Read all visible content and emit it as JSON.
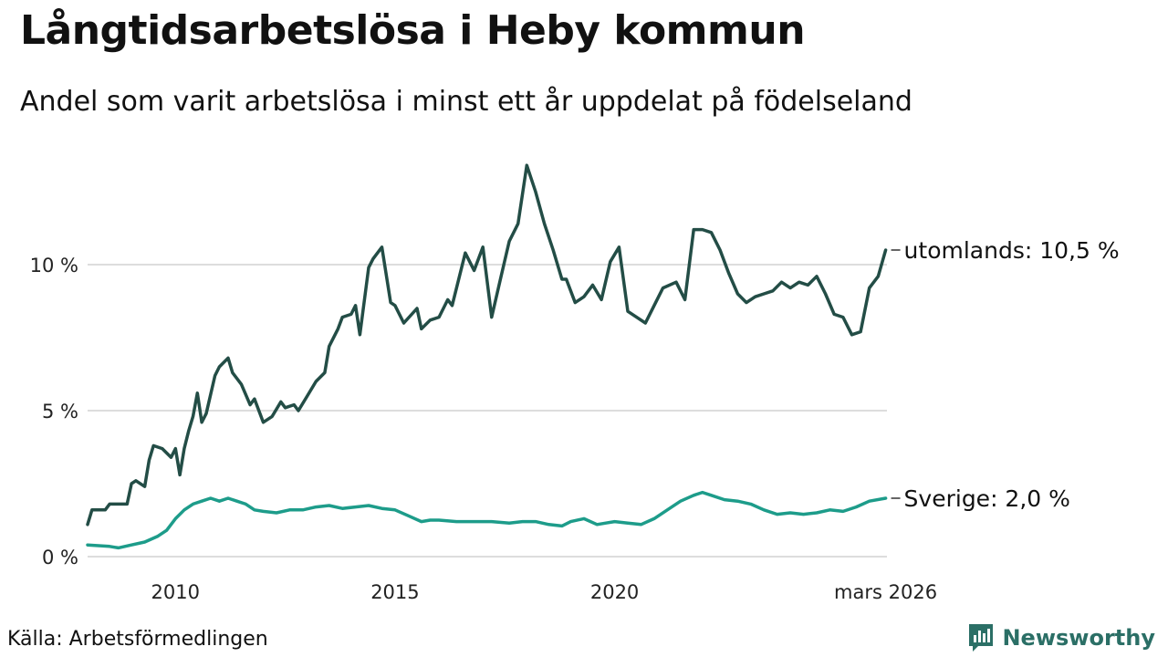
{
  "chart_data": {
    "type": "line",
    "title": "Långtidsarbetslösa i Heby kommun",
    "subtitle": "Andel som varit arbetslösa i minst ett år uppdelat på födelseland",
    "ylim": [
      0,
      14
    ],
    "xlim": [
      2008.0,
      2026.2
    ],
    "yticks": [
      {
        "value": 0,
        "label": "0 %"
      },
      {
        "value": 5,
        "label": "5 %"
      },
      {
        "value": 10,
        "label": "10 %"
      }
    ],
    "xticks": [
      {
        "value": 2010,
        "label": "2010"
      },
      {
        "value": 2015,
        "label": "2015"
      },
      {
        "value": 2020,
        "label": "2020"
      },
      {
        "value": 2026.17,
        "label": "mars 2026"
      }
    ],
    "series": [
      {
        "name": "utomlands",
        "end_label": "utomlands: 10,5 %",
        "color": "#234d46",
        "x": [
          2008.0,
          2008.1,
          2008.4,
          2008.5,
          2008.9,
          2009.0,
          2009.1,
          2009.3,
          2009.4,
          2009.5,
          2009.7,
          2009.9,
          2010.0,
          2010.1,
          2010.2,
          2010.3,
          2010.4,
          2010.5,
          2010.6,
          2010.7,
          2010.9,
          2011.0,
          2011.2,
          2011.3,
          2011.5,
          2011.7,
          2011.8,
          2012.0,
          2012.2,
          2012.4,
          2012.5,
          2012.7,
          2012.8,
          2013.0,
          2013.2,
          2013.4,
          2013.5,
          2013.7,
          2013.8,
          2014.0,
          2014.1,
          2014.2,
          2014.4,
          2014.5,
          2014.7,
          2014.9,
          2015.0,
          2015.2,
          2015.5,
          2015.6,
          2015.8,
          2016.0,
          2016.2,
          2016.3,
          2016.6,
          2016.8,
          2017.0,
          2017.2,
          2017.4,
          2017.6,
          2017.8,
          2018.0,
          2018.2,
          2018.4,
          2018.6,
          2018.8,
          2018.9,
          2019.1,
          2019.3,
          2019.5,
          2019.7,
          2019.9,
          2020.1,
          2020.3,
          2020.5,
          2020.7,
          2020.9,
          2021.1,
          2021.4,
          2021.6,
          2021.8,
          2022.0,
          2022.2,
          2022.4,
          2022.6,
          2022.8,
          2023.0,
          2023.2,
          2023.4,
          2023.6,
          2023.8,
          2024.0,
          2024.2,
          2024.4,
          2024.6,
          2024.8,
          2025.0,
          2025.2,
          2025.4,
          2025.6,
          2025.8,
          2026.0,
          2026.17
        ],
        "values": [
          1.1,
          1.6,
          1.6,
          1.8,
          1.8,
          2.5,
          2.6,
          2.4,
          3.3,
          3.8,
          3.7,
          3.4,
          3.7,
          2.8,
          3.7,
          4.3,
          4.8,
          5.6,
          4.6,
          4.9,
          6.2,
          6.5,
          6.8,
          6.3,
          5.9,
          5.2,
          5.4,
          4.6,
          4.8,
          5.3,
          5.1,
          5.2,
          5.0,
          5.5,
          6.0,
          6.3,
          7.2,
          7.8,
          8.2,
          8.3,
          8.6,
          7.6,
          9.9,
          10.2,
          10.6,
          8.7,
          8.6,
          8.0,
          8.5,
          7.8,
          8.1,
          8.2,
          8.8,
          8.6,
          10.4,
          9.8,
          10.6,
          8.2,
          9.5,
          10.8,
          11.4,
          13.4,
          12.5,
          11.4,
          10.5,
          9.5,
          9.5,
          8.7,
          8.9,
          9.3,
          8.8,
          10.1,
          10.6,
          8.4,
          8.2,
          8.0,
          8.6,
          9.2,
          9.4,
          8.8,
          11.2,
          11.2,
          11.1,
          10.5,
          9.7,
          9.0,
          8.7,
          8.9,
          9.0,
          9.1,
          9.4,
          9.2,
          9.4,
          9.3,
          9.6,
          9.0,
          8.3,
          8.2,
          7.6,
          7.7,
          9.2,
          9.6,
          10.5
        ]
      },
      {
        "name": "Sverige",
        "end_label": "Sverige:  2,0 %",
        "color": "#1d9c8a",
        "x": [
          2008.0,
          2008.5,
          2008.7,
          2009.0,
          2009.3,
          2009.6,
          2009.8,
          2010.0,
          2010.2,
          2010.4,
          2010.6,
          2010.8,
          2011.0,
          2011.2,
          2011.4,
          2011.6,
          2011.8,
          2012.0,
          2012.3,
          2012.6,
          2012.9,
          2013.2,
          2013.5,
          2013.8,
          2014.1,
          2014.4,
          2014.7,
          2015.0,
          2015.3,
          2015.6,
          2015.8,
          2016.0,
          2016.4,
          2016.8,
          2017.2,
          2017.6,
          2017.9,
          2018.2,
          2018.5,
          2018.8,
          2019.0,
          2019.3,
          2019.6,
          2019.8,
          2020.0,
          2020.3,
          2020.6,
          2020.9,
          2021.2,
          2021.5,
          2021.8,
          2022.0,
          2022.2,
          2022.5,
          2022.8,
          2023.1,
          2023.4,
          2023.7,
          2024.0,
          2024.3,
          2024.6,
          2024.9,
          2025.2,
          2025.5,
          2025.8,
          2026.17
        ],
        "values": [
          0.4,
          0.35,
          0.3,
          0.4,
          0.5,
          0.7,
          0.9,
          1.3,
          1.6,
          1.8,
          1.9,
          2.0,
          1.9,
          2.0,
          1.9,
          1.8,
          1.6,
          1.55,
          1.5,
          1.6,
          1.6,
          1.7,
          1.75,
          1.65,
          1.7,
          1.75,
          1.65,
          1.6,
          1.4,
          1.2,
          1.25,
          1.25,
          1.2,
          1.2,
          1.2,
          1.15,
          1.2,
          1.2,
          1.1,
          1.05,
          1.2,
          1.3,
          1.1,
          1.15,
          1.2,
          1.15,
          1.1,
          1.3,
          1.6,
          1.9,
          2.1,
          2.2,
          2.1,
          1.95,
          1.9,
          1.8,
          1.6,
          1.45,
          1.5,
          1.45,
          1.5,
          1.6,
          1.55,
          1.7,
          1.9,
          2.0
        ]
      }
    ]
  },
  "footer": {
    "source": "Källa: Arbetsförmedlingen",
    "brand": "Newsworthy",
    "brand_color": "#2b6f66"
  }
}
